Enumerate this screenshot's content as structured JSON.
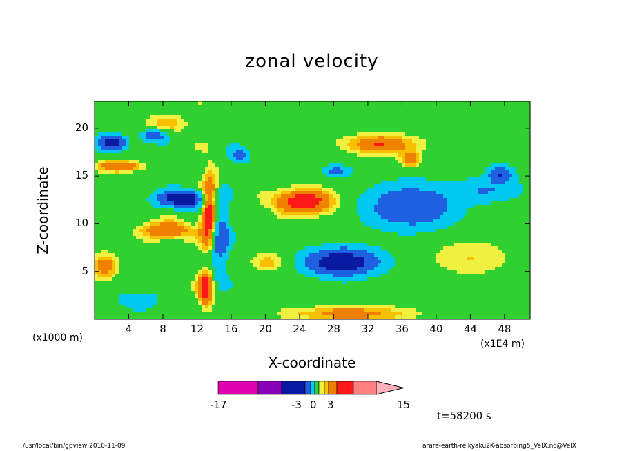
{
  "chart_data": {
    "type": "heatmap",
    "title": "zonal velocity",
    "xlabel": "X-coordinate",
    "ylabel": "Z-coordinate",
    "x_unit_label": "(x1000 m)",
    "x_scale_label": "(x1E4 m)",
    "xlim": [
      0,
      51
    ],
    "ylim": [
      0,
      22.8
    ],
    "x_ticks": [
      4,
      8,
      12,
      16,
      20,
      24,
      28,
      32,
      36,
      40,
      44,
      48
    ],
    "y_ticks": [
      5,
      10,
      15,
      20
    ],
    "colorbar": {
      "colors": [
        "#e000b0",
        "#8800b8",
        "#0a1aa0",
        "#1e60e0",
        "#00c8f0",
        "#30d030",
        "#f0f040",
        "#f8c000",
        "#f08000",
        "#ff1818",
        "#ff8080",
        "#ffb0b8"
      ],
      "labels": [
        "-17",
        "-3",
        "0",
        "3",
        "15"
      ]
    },
    "time_label": "t=58200 s",
    "footer_left": "/usr/local/bin/gpview  2010-11-09",
    "footer_right": "arare-earth-reikyaku2K-absorbing5_VelX.nc@VelX",
    "blobs": [
      {
        "x": 29,
        "z": 6.0,
        "sx": 4.2,
        "sy": 1.4,
        "v": -9
      },
      {
        "x": 37,
        "z": 11.8,
        "sx": 5.0,
        "sy": 2.2,
        "v": -6
      },
      {
        "x": 46,
        "z": 13.5,
        "sx": 4.0,
        "sy": 1.2,
        "v": -3
      },
      {
        "x": 47.5,
        "z": 15.2,
        "sx": 1.4,
        "sy": 0.8,
        "v": -6
      },
      {
        "x": 10.5,
        "z": 12.6,
        "sx": 3.0,
        "sy": 0.9,
        "v": -9
      },
      {
        "x": 14.5,
        "z": 8.8,
        "sx": 1.2,
        "sy": 4.0,
        "v": -6
      },
      {
        "x": 2.0,
        "z": 18.5,
        "sx": 1.6,
        "sy": 0.8,
        "v": -8
      },
      {
        "x": 7.0,
        "z": 19.2,
        "sx": 1.5,
        "sy": 0.7,
        "v": -5
      },
      {
        "x": 17.0,
        "z": 17.2,
        "sx": 1.2,
        "sy": 0.8,
        "v": -4
      },
      {
        "x": 28.5,
        "z": 15.5,
        "sx": 1.6,
        "sy": 0.6,
        "v": -4
      },
      {
        "x": 24.5,
        "z": 12.3,
        "sx": 3.5,
        "sy": 1.3,
        "v": 7
      },
      {
        "x": 33.5,
        "z": 18.3,
        "sx": 4.2,
        "sy": 1.0,
        "v": 5
      },
      {
        "x": 37.0,
        "z": 16.7,
        "sx": 1.2,
        "sy": 0.8,
        "v": 4
      },
      {
        "x": 13.5,
        "z": 11.0,
        "sx": 1.0,
        "sy": 4.0,
        "v": 9
      },
      {
        "x": 13.0,
        "z": 3.0,
        "sx": 0.9,
        "sy": 1.9,
        "v": 7
      },
      {
        "x": 1.2,
        "z": 5.5,
        "sx": 1.4,
        "sy": 1.4,
        "v": 4
      },
      {
        "x": 3.0,
        "z": 16.0,
        "sx": 2.8,
        "sy": 0.6,
        "v": 5
      },
      {
        "x": 8.5,
        "z": 9.3,
        "sx": 3.0,
        "sy": 1.0,
        "v": 5
      },
      {
        "x": 20.0,
        "z": 6.0,
        "sx": 2.0,
        "sy": 1.0,
        "v": 3
      },
      {
        "x": 30.0,
        "z": 0.6,
        "sx": 7.0,
        "sy": 0.8,
        "v": 4
      },
      {
        "x": 44.0,
        "z": 6.5,
        "sx": 5.0,
        "sy": 2.0,
        "v": 2
      },
      {
        "x": 5.0,
        "z": 2.0,
        "sx": 3.0,
        "sy": 1.0,
        "v": -2
      },
      {
        "x": 8.0,
        "z": 20.5,
        "sx": 4.0,
        "sy": 1.0,
        "v": 2
      }
    ]
  }
}
